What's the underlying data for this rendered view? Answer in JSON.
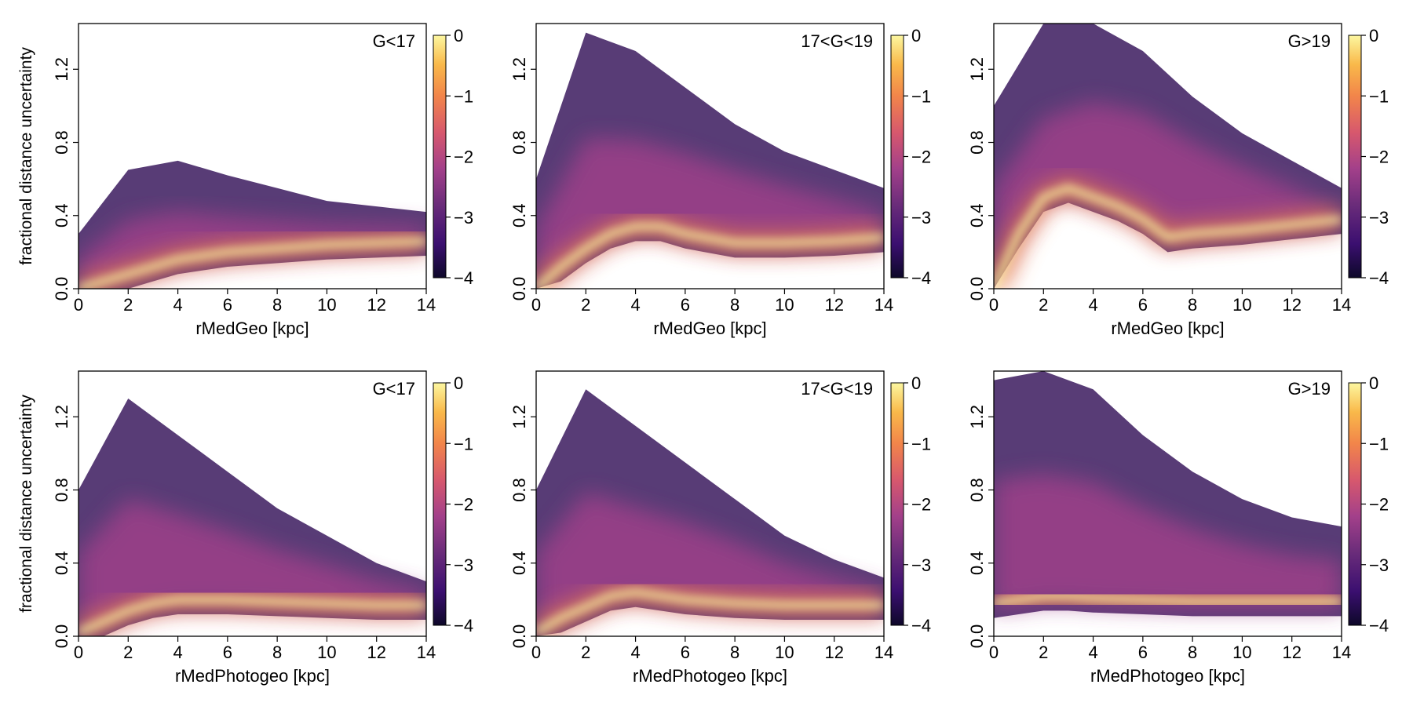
{
  "figure": {
    "layout": "2x3 grid of density heatmaps",
    "colorbar_ticks": [
      "0",
      "−1",
      "−2",
      "−3",
      "−4"
    ],
    "colorscale_colors": [
      "#0d0829",
      "#3b0f70",
      "#6a2c7a",
      "#a3408a",
      "#d7586d",
      "#f2854a",
      "#f9b94a",
      "#fcf7a0"
    ],
    "ylabel": "fractional distance uncertainty"
  },
  "chart_data": [
    {
      "type": "heatmap",
      "title": "G<17",
      "xlabel": "rMedGeo [kpc]",
      "ylabel": "fractional distance uncertainty",
      "xlim": [
        0,
        14
      ],
      "ylim": [
        0,
        1.45
      ],
      "xticks": [
        "0",
        "2",
        "4",
        "6",
        "8",
        "10",
        "12",
        "14"
      ],
      "yticks": [
        "0.0",
        "0.4",
        "0.8",
        "1.2"
      ],
      "colorbar": {
        "min": -4,
        "max": 0,
        "label_ticks": [
          "0",
          "−1",
          "−2",
          "−3",
          "−4"
        ]
      },
      "density_ridge": {
        "x": [
          0,
          1,
          2,
          3,
          4,
          6,
          8,
          10,
          12,
          14
        ],
        "y": [
          0.0,
          0.04,
          0.08,
          0.12,
          0.16,
          0.2,
          0.22,
          0.24,
          0.25,
          0.26
        ]
      },
      "spread_upper": {
        "x": [
          0,
          2,
          4,
          6,
          8,
          10,
          12,
          14
        ],
        "y": [
          0.3,
          0.65,
          0.7,
          0.62,
          0.55,
          0.48,
          0.45,
          0.42
        ]
      }
    },
    {
      "type": "heatmap",
      "title": "17<G<19",
      "xlabel": "rMedGeo [kpc]",
      "ylabel": "",
      "xlim": [
        0,
        14
      ],
      "ylim": [
        0,
        1.45
      ],
      "xticks": [
        "0",
        "2",
        "4",
        "6",
        "8",
        "10",
        "12",
        "14"
      ],
      "yticks": [
        "0.0",
        "0.4",
        "0.8",
        "1.2"
      ],
      "colorbar": {
        "min": -4,
        "max": 0,
        "label_ticks": [
          "0",
          "−1",
          "−2",
          "−3",
          "−4"
        ]
      },
      "density_ridge": {
        "x": [
          0,
          1,
          2,
          3,
          4,
          5,
          6,
          8,
          10,
          12,
          14
        ],
        "y": [
          0.0,
          0.12,
          0.22,
          0.3,
          0.34,
          0.34,
          0.3,
          0.25,
          0.25,
          0.26,
          0.28
        ]
      },
      "spread_upper": {
        "x": [
          0,
          2,
          4,
          6,
          8,
          10,
          12,
          14
        ],
        "y": [
          0.6,
          1.4,
          1.3,
          1.1,
          0.9,
          0.75,
          0.65,
          0.55
        ]
      }
    },
    {
      "type": "heatmap",
      "title": "G>19",
      "xlabel": "rMedGeo [kpc]",
      "ylabel": "",
      "xlim": [
        0,
        14
      ],
      "ylim": [
        0,
        1.45
      ],
      "xticks": [
        "0",
        "2",
        "4",
        "6",
        "8",
        "10",
        "12",
        "14"
      ],
      "yticks": [
        "0.0",
        "0.4",
        "0.8",
        "1.2"
      ],
      "colorbar": {
        "min": -4,
        "max": 0,
        "label_ticks": [
          "0",
          "−1",
          "−2",
          "−3",
          "−4"
        ]
      },
      "density_ridge": {
        "x": [
          0,
          1,
          2,
          3,
          4,
          5,
          6,
          7,
          8,
          10,
          12,
          14
        ],
        "y": [
          0.0,
          0.3,
          0.5,
          0.55,
          0.5,
          0.45,
          0.38,
          0.28,
          0.3,
          0.32,
          0.35,
          0.38
        ]
      },
      "spread_upper": {
        "x": [
          0,
          2,
          4,
          6,
          8,
          10,
          12,
          14
        ],
        "y": [
          1.0,
          1.45,
          1.45,
          1.3,
          1.05,
          0.85,
          0.7,
          0.55
        ]
      }
    },
    {
      "type": "heatmap",
      "title": "G<17",
      "xlabel": "rMedPhotogeo [kpc]",
      "ylabel": "fractional distance uncertainty",
      "xlim": [
        0,
        14
      ],
      "ylim": [
        0,
        1.45
      ],
      "xticks": [
        "0",
        "2",
        "4",
        "6",
        "8",
        "10",
        "12",
        "14"
      ],
      "yticks": [
        "0.0",
        "0.4",
        "0.8",
        "1.2"
      ],
      "colorbar": {
        "min": -4,
        "max": 0,
        "label_ticks": [
          "0",
          "−1",
          "−2",
          "−3",
          "−4"
        ]
      },
      "density_ridge": {
        "x": [
          0,
          1,
          2,
          3,
          4,
          6,
          8,
          10,
          12,
          14
        ],
        "y": [
          0.02,
          0.08,
          0.14,
          0.18,
          0.2,
          0.2,
          0.19,
          0.18,
          0.17,
          0.17
        ]
      },
      "spread_upper": {
        "x": [
          0,
          2,
          4,
          6,
          8,
          10,
          12,
          14
        ],
        "y": [
          0.8,
          1.3,
          1.1,
          0.9,
          0.7,
          0.55,
          0.4,
          0.3
        ]
      }
    },
    {
      "type": "heatmap",
      "title": "17<G<19",
      "xlabel": "rMedPhotogeo [kpc]",
      "ylabel": "",
      "xlim": [
        0,
        14
      ],
      "ylim": [
        0,
        1.45
      ],
      "xticks": [
        "0",
        "2",
        "4",
        "6",
        "8",
        "10",
        "12",
        "14"
      ],
      "yticks": [
        "0.0",
        "0.4",
        "0.8",
        "1.2"
      ],
      "colorbar": {
        "min": -4,
        "max": 0,
        "label_ticks": [
          "0",
          "−1",
          "−2",
          "−3",
          "−4"
        ]
      },
      "density_ridge": {
        "x": [
          0,
          1,
          2,
          3,
          4,
          5,
          6,
          8,
          10,
          12,
          14
        ],
        "y": [
          0.02,
          0.1,
          0.16,
          0.22,
          0.24,
          0.22,
          0.2,
          0.18,
          0.17,
          0.17,
          0.17
        ]
      },
      "spread_upper": {
        "x": [
          0,
          2,
          4,
          6,
          8,
          10,
          12,
          14
        ],
        "y": [
          0.8,
          1.35,
          1.15,
          0.95,
          0.75,
          0.55,
          0.42,
          0.32
        ]
      }
    },
    {
      "type": "heatmap",
      "title": "G>19",
      "xlabel": "rMedPhotogeo [kpc]",
      "ylabel": "",
      "xlim": [
        0,
        14
      ],
      "ylim": [
        0,
        1.45
      ],
      "xticks": [
        "0",
        "2",
        "4",
        "6",
        "8",
        "10",
        "12",
        "14"
      ],
      "yticks": [
        "0.0",
        "0.4",
        "0.8",
        "1.2"
      ],
      "colorbar": {
        "min": -4,
        "max": 0,
        "label_ticks": [
          "0",
          "−1",
          "−2",
          "−3",
          "−4"
        ]
      },
      "density_ridge": {
        "x": [
          0,
          1,
          2,
          3,
          4,
          6,
          8,
          10,
          12,
          14
        ],
        "y": [
          0.18,
          0.2,
          0.22,
          0.22,
          0.21,
          0.2,
          0.19,
          0.19,
          0.19,
          0.19
        ]
      },
      "spread_upper": {
        "x": [
          0,
          2,
          4,
          6,
          8,
          10,
          12,
          14
        ],
        "y": [
          1.4,
          1.45,
          1.35,
          1.1,
          0.9,
          0.75,
          0.65,
          0.6
        ]
      }
    }
  ]
}
